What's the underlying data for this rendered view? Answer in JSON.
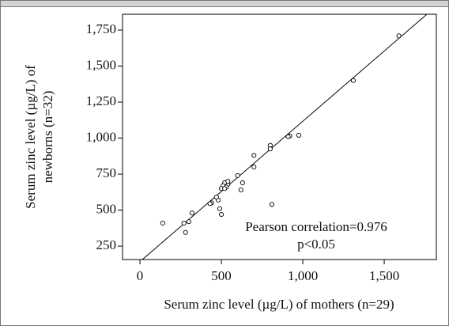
{
  "chart_data": {
    "type": "scatter",
    "xlabel": "Serum zinc level (µg/L) of mothers (n=29)",
    "ylabel": [
      "Serum zinc level (µg/L) of",
      "newborns (n=32)"
    ],
    "annotations": [
      "Pearson correlation=0.976",
      "p<0.05"
    ],
    "x": [
      1590,
      1310,
      975,
      920,
      910,
      800,
      800,
      700,
      700,
      600,
      630,
      620,
      540,
      520,
      510,
      500,
      530,
      540,
      520,
      480,
      470,
      440,
      430,
      490,
      500,
      320,
      300,
      270,
      280,
      140,
      810
    ],
    "values": [
      1710,
      1400,
      1020,
      1015,
      1010,
      950,
      925,
      880,
      800,
      740,
      690,
      640,
      680,
      690,
      670,
      650,
      660,
      700,
      650,
      570,
      590,
      550,
      545,
      510,
      470,
      480,
      420,
      410,
      345,
      410,
      540
    ],
    "color": "#000000",
    "trend_line": {
      "x": [
        15,
        1762
      ],
      "y": [
        157,
        1860
      ]
    },
    "xlim": [
      -107,
      1820
    ],
    "ylim": [
      157,
      1860
    ],
    "xticks": [
      0,
      500,
      {
        "value": 1000,
        "label": "1,000"
      },
      {
        "value": 1500,
        "label": "1,500"
      }
    ],
    "yticks": [
      250,
      500,
      750,
      {
        "value": 1000,
        "label": "1,000"
      },
      {
        "value": 1250,
        "label": "1,250"
      },
      {
        "value": 1500,
        "label": "1,500"
      },
      {
        "value": 1750,
        "label": "1,750"
      }
    ],
    "grid": false
  }
}
